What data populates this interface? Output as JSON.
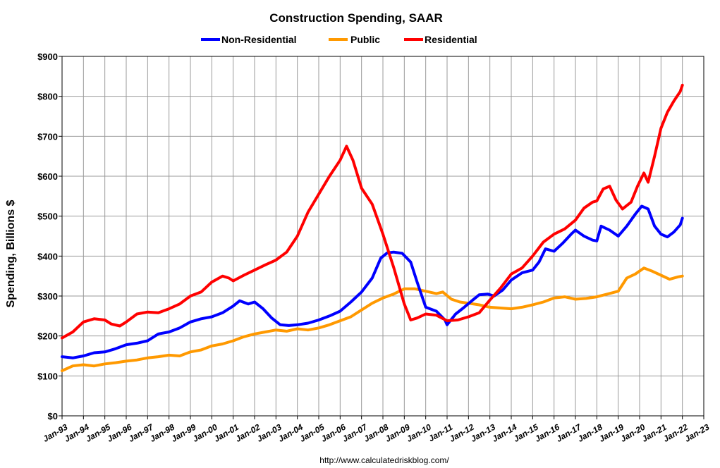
{
  "chart_data": {
    "type": "line",
    "title": "Construction Spending, SAAR",
    "ylabel": "Spending, Billions $",
    "source": "http://www.calculatedriskblog.com/",
    "ylim": [
      0,
      900
    ],
    "yticks": [
      0,
      100,
      200,
      300,
      400,
      500,
      600,
      700,
      800,
      900
    ],
    "ytick_labels": [
      "$0",
      "$100",
      "$200",
      "$300",
      "$400",
      "$500",
      "$600",
      "$700",
      "$800",
      "$900"
    ],
    "xlim": [
      1993.0,
      2023.0
    ],
    "xtick_labels": [
      "Jan-93",
      "Jan-94",
      "Jan-95",
      "Jan-96",
      "Jan-97",
      "Jan-98",
      "Jan-99",
      "Jan-00",
      "Jan-01",
      "Jan-02",
      "Jan-03",
      "Jan-04",
      "Jan-05",
      "Jan-06",
      "Jan-07",
      "Jan-08",
      "Jan-09",
      "Jan-10",
      "Jan-11",
      "Jan-12",
      "Jan-13",
      "Jan-14",
      "Jan-15",
      "Jan-16",
      "Jan-17",
      "Jan-18",
      "Jan-19",
      "Jan-20",
      "Jan-21",
      "Jan-22",
      "Jan-23"
    ],
    "grid": true,
    "legend_position": "top",
    "series": [
      {
        "name": "Non-Residential",
        "color": "#0000ff",
        "points": [
          [
            1993.0,
            148
          ],
          [
            1993.5,
            145
          ],
          [
            1994.0,
            150
          ],
          [
            1994.5,
            158
          ],
          [
            1995.0,
            160
          ],
          [
            1995.5,
            168
          ],
          [
            1996.0,
            178
          ],
          [
            1996.5,
            182
          ],
          [
            1997.0,
            188
          ],
          [
            1997.5,
            205
          ],
          [
            1998.0,
            210
          ],
          [
            1998.5,
            220
          ],
          [
            1999.0,
            235
          ],
          [
            1999.5,
            243
          ],
          [
            2000.0,
            248
          ],
          [
            2000.5,
            258
          ],
          [
            2001.0,
            275
          ],
          [
            2001.3,
            288
          ],
          [
            2001.7,
            280
          ],
          [
            2002.0,
            285
          ],
          [
            2002.4,
            268
          ],
          [
            2002.8,
            245
          ],
          [
            2003.2,
            228
          ],
          [
            2003.6,
            226
          ],
          [
            2004.0,
            228
          ],
          [
            2004.5,
            232
          ],
          [
            2005.0,
            240
          ],
          [
            2005.5,
            250
          ],
          [
            2006.0,
            262
          ],
          [
            2006.5,
            285
          ],
          [
            2007.0,
            310
          ],
          [
            2007.5,
            345
          ],
          [
            2007.9,
            395
          ],
          [
            2008.2,
            408
          ],
          [
            2008.5,
            410
          ],
          [
            2008.9,
            407
          ],
          [
            2009.3,
            385
          ],
          [
            2009.6,
            335
          ],
          [
            2010.0,
            272
          ],
          [
            2010.5,
            262
          ],
          [
            2010.9,
            240
          ],
          [
            2011.0,
            228
          ],
          [
            2011.4,
            255
          ],
          [
            2011.8,
            272
          ],
          [
            2012.2,
            290
          ],
          [
            2012.5,
            303
          ],
          [
            2012.9,
            305
          ],
          [
            2013.2,
            300
          ],
          [
            2013.6,
            315
          ],
          [
            2014.0,
            340
          ],
          [
            2014.5,
            358
          ],
          [
            2015.0,
            365
          ],
          [
            2015.3,
            385
          ],
          [
            2015.6,
            418
          ],
          [
            2016.0,
            412
          ],
          [
            2016.4,
            432
          ],
          [
            2016.8,
            455
          ],
          [
            2017.0,
            465
          ],
          [
            2017.4,
            450
          ],
          [
            2017.8,
            440
          ],
          [
            2018.0,
            438
          ],
          [
            2018.2,
            475
          ],
          [
            2018.6,
            465
          ],
          [
            2019.0,
            450
          ],
          [
            2019.4,
            475
          ],
          [
            2019.8,
            505
          ],
          [
            2020.1,
            525
          ],
          [
            2020.4,
            518
          ],
          [
            2020.7,
            475
          ],
          [
            2021.0,
            455
          ],
          [
            2021.3,
            448
          ],
          [
            2021.6,
            460
          ],
          [
            2021.9,
            478
          ],
          [
            2022.0,
            495
          ]
        ]
      },
      {
        "name": "Public",
        "color": "#ff9900",
        "points": [
          [
            1993.0,
            113
          ],
          [
            1993.5,
            125
          ],
          [
            1994.0,
            128
          ],
          [
            1994.5,
            125
          ],
          [
            1995.0,
            130
          ],
          [
            1995.5,
            133
          ],
          [
            1996.0,
            137
          ],
          [
            1996.5,
            140
          ],
          [
            1997.0,
            145
          ],
          [
            1997.5,
            148
          ],
          [
            1998.0,
            152
          ],
          [
            1998.5,
            150
          ],
          [
            1999.0,
            160
          ],
          [
            1999.5,
            165
          ],
          [
            2000.0,
            175
          ],
          [
            2000.5,
            180
          ],
          [
            2001.0,
            188
          ],
          [
            2001.5,
            198
          ],
          [
            2002.0,
            205
          ],
          [
            2002.5,
            210
          ],
          [
            2003.0,
            215
          ],
          [
            2003.5,
            212
          ],
          [
            2004.0,
            218
          ],
          [
            2004.5,
            215
          ],
          [
            2005.0,
            220
          ],
          [
            2005.5,
            228
          ],
          [
            2006.0,
            238
          ],
          [
            2006.5,
            248
          ],
          [
            2007.0,
            265
          ],
          [
            2007.5,
            282
          ],
          [
            2008.0,
            295
          ],
          [
            2008.5,
            305
          ],
          [
            2009.0,
            318
          ],
          [
            2009.5,
            318
          ],
          [
            2010.0,
            312
          ],
          [
            2010.5,
            306
          ],
          [
            2010.8,
            310
          ],
          [
            2011.2,
            292
          ],
          [
            2011.6,
            285
          ],
          [
            2012.0,
            282
          ],
          [
            2012.5,
            278
          ],
          [
            2013.0,
            272
          ],
          [
            2013.5,
            270
          ],
          [
            2014.0,
            268
          ],
          [
            2014.5,
            272
          ],
          [
            2015.0,
            278
          ],
          [
            2015.5,
            285
          ],
          [
            2016.0,
            295
          ],
          [
            2016.5,
            298
          ],
          [
            2017.0,
            292
          ],
          [
            2017.5,
            294
          ],
          [
            2018.0,
            298
          ],
          [
            2018.5,
            305
          ],
          [
            2019.0,
            312
          ],
          [
            2019.4,
            345
          ],
          [
            2019.8,
            355
          ],
          [
            2020.2,
            370
          ],
          [
            2020.6,
            362
          ],
          [
            2021.0,
            352
          ],
          [
            2021.4,
            342
          ],
          [
            2021.8,
            348
          ],
          [
            2022.0,
            350
          ]
        ]
      },
      {
        "name": "Residential",
        "color": "#ff0000",
        "points": [
          [
            1993.0,
            195
          ],
          [
            1993.5,
            210
          ],
          [
            1994.0,
            235
          ],
          [
            1994.5,
            243
          ],
          [
            1995.0,
            240
          ],
          [
            1995.3,
            230
          ],
          [
            1995.7,
            225
          ],
          [
            1996.0,
            235
          ],
          [
            1996.5,
            255
          ],
          [
            1997.0,
            260
          ],
          [
            1997.5,
            258
          ],
          [
            1998.0,
            268
          ],
          [
            1998.5,
            280
          ],
          [
            1999.0,
            300
          ],
          [
            1999.5,
            310
          ],
          [
            2000.0,
            335
          ],
          [
            2000.5,
            350
          ],
          [
            2000.8,
            345
          ],
          [
            2001.0,
            338
          ],
          [
            2001.5,
            352
          ],
          [
            2002.0,
            365
          ],
          [
            2002.5,
            378
          ],
          [
            2003.0,
            390
          ],
          [
            2003.5,
            410
          ],
          [
            2004.0,
            450
          ],
          [
            2004.5,
            510
          ],
          [
            2005.0,
            555
          ],
          [
            2005.5,
            600
          ],
          [
            2006.0,
            640
          ],
          [
            2006.3,
            675
          ],
          [
            2006.6,
            640
          ],
          [
            2007.0,
            570
          ],
          [
            2007.5,
            530
          ],
          [
            2008.0,
            455
          ],
          [
            2008.5,
            372
          ],
          [
            2009.0,
            280
          ],
          [
            2009.3,
            240
          ],
          [
            2009.6,
            245
          ],
          [
            2010.0,
            255
          ],
          [
            2010.5,
            252
          ],
          [
            2011.0,
            238
          ],
          [
            2011.5,
            240
          ],
          [
            2012.0,
            248
          ],
          [
            2012.5,
            258
          ],
          [
            2013.0,
            290
          ],
          [
            2013.5,
            320
          ],
          [
            2014.0,
            355
          ],
          [
            2014.5,
            370
          ],
          [
            2015.0,
            400
          ],
          [
            2015.5,
            435
          ],
          [
            2016.0,
            455
          ],
          [
            2016.5,
            468
          ],
          [
            2017.0,
            490
          ],
          [
            2017.4,
            520
          ],
          [
            2017.8,
            535
          ],
          [
            2018.0,
            538
          ],
          [
            2018.3,
            568
          ],
          [
            2018.6,
            575
          ],
          [
            2018.9,
            540
          ],
          [
            2019.2,
            518
          ],
          [
            2019.6,
            535
          ],
          [
            2019.9,
            575
          ],
          [
            2020.2,
            608
          ],
          [
            2020.4,
            585
          ],
          [
            2020.7,
            650
          ],
          [
            2021.0,
            720
          ],
          [
            2021.3,
            760
          ],
          [
            2021.6,
            788
          ],
          [
            2021.9,
            812
          ],
          [
            2022.0,
            828
          ]
        ]
      }
    ]
  }
}
